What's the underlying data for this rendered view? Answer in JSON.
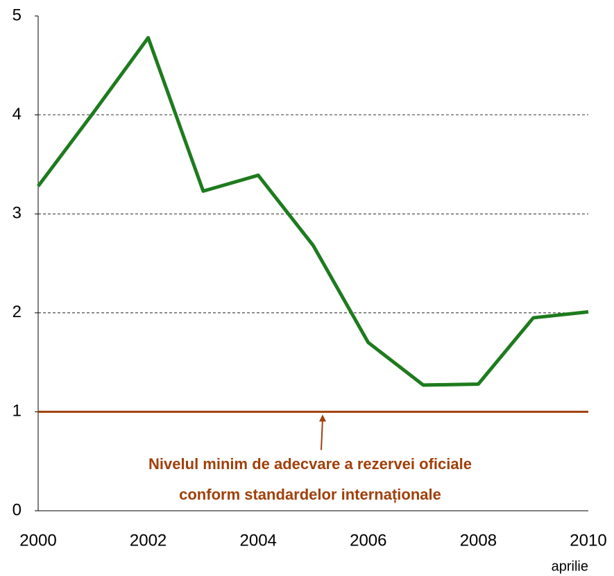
{
  "chart_data": {
    "type": "line",
    "x": [
      2000,
      2001,
      2002,
      2003,
      2004,
      2005,
      2006,
      2007,
      2008,
      2009,
      2010
    ],
    "series": [
      {
        "color": "#1e7b1e",
        "values": [
          3.28,
          4.02,
          4.78,
          3.23,
          3.39,
          2.68,
          1.7,
          1.27,
          1.28,
          1.95,
          2.01
        ]
      }
    ],
    "xlim": [
      2000,
      2010
    ],
    "xticks": [
      2000,
      2002,
      2004,
      2006,
      2008,
      2010
    ],
    "ylim": [
      0,
      5
    ],
    "yticks": [
      0,
      1,
      2,
      3,
      4,
      5
    ],
    "grid": true,
    "x_note": "aprilie",
    "reference_line": {
      "value": 1,
      "color": "#a0400a",
      "label": [
        "Nivelul minim de adecvare a rezervei oficiale",
        "conform standardelor internaționale"
      ]
    }
  }
}
